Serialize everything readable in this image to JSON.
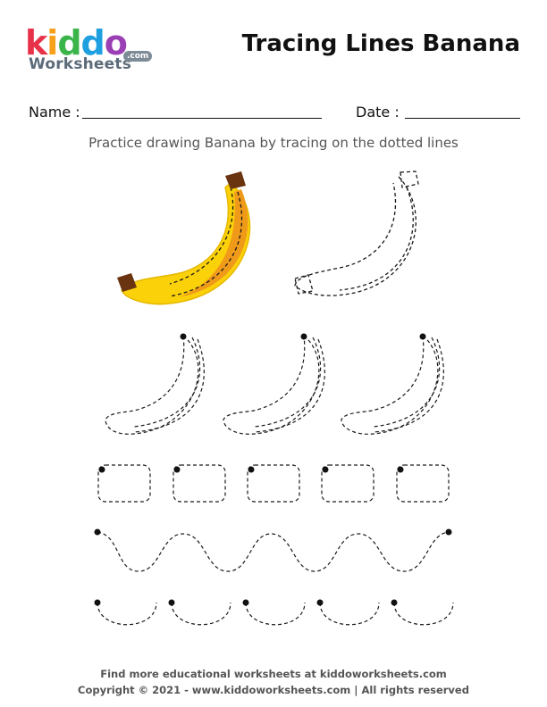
{
  "logo": {
    "letters": [
      {
        "char": "k",
        "color": "#e8324a"
      },
      {
        "char": "i",
        "color": "#f6a01b"
      },
      {
        "char": "d",
        "color": "#3bb54a"
      },
      {
        "char": "d",
        "color": "#1e9fe0"
      },
      {
        "char": "o",
        "color": "#9b3fb5"
      }
    ],
    "subtitle": "Worksheets",
    "domain_badge": ".com"
  },
  "header": {
    "title": "Tracing Lines Banana"
  },
  "form": {
    "name_label": "Name :",
    "date_label": "Date :"
  },
  "instructions": "Practice drawing Banana by tracing on the dotted lines",
  "footer": {
    "line1": "Find more educational worksheets at kiddoworksheets.com",
    "line2": "Copyright © 2021 - www.kiddoworksheets.com  |  All rights reserved"
  },
  "colors": {
    "banana_yellow": "#fbd10a",
    "banana_orange": "#f09a1a",
    "banana_stem": "#6b3410",
    "outline": "#1a1a1a"
  }
}
